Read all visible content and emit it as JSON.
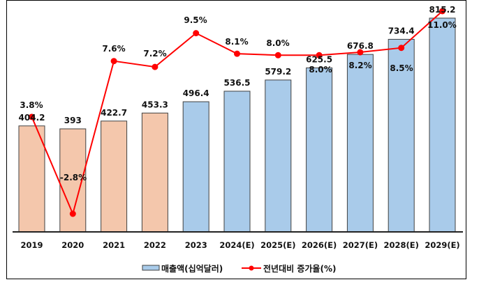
{
  "chart_data": {
    "type": "bar",
    "title": "",
    "xlabel": "",
    "ylabel": "",
    "categories": [
      "2019",
      "2020",
      "2021",
      "2022",
      "2023",
      "2024(E)",
      "2025(E)",
      "2026(E)",
      "2027(E)",
      "2028(E)",
      "2029(E)"
    ],
    "series": [
      {
        "name": "매출액(십억달러)",
        "type": "bar",
        "values": [
          404.2,
          393,
          422.7,
          453.3,
          496.4,
          536.5,
          579.2,
          625.5,
          676.8,
          734.4,
          815.2
        ],
        "labels": [
          "404.2",
          "393",
          "422.7",
          "453.3",
          "496.4",
          "536.5",
          "579.2",
          "625.5",
          "676.8",
          "734.4",
          "815.2"
        ],
        "colors": {
          "actual": "#F4C7AC",
          "estimate": "#A9CBEA",
          "border": "#404040"
        }
      },
      {
        "name": "전년대비 증가율(%)",
        "type": "line",
        "values": [
          3.8,
          -2.8,
          7.6,
          7.2,
          9.5,
          8.1,
          8.0,
          8.0,
          8.2,
          8.5,
          11.0
        ],
        "labels": [
          "3.8%",
          "-2.8%",
          "7.6%",
          "7.2%",
          "9.5%",
          "8.1%",
          "8.0%",
          "8.0%",
          "8.2%",
          "8.5%",
          "11.0%"
        ],
        "color": "#FF0000"
      }
    ],
    "legend_position": "bottom",
    "grid": false,
    "y_axis_visible": false
  },
  "legend": {
    "bar_label": "매출액(십억달러)",
    "line_label": "전년대비 증가율(%)"
  }
}
